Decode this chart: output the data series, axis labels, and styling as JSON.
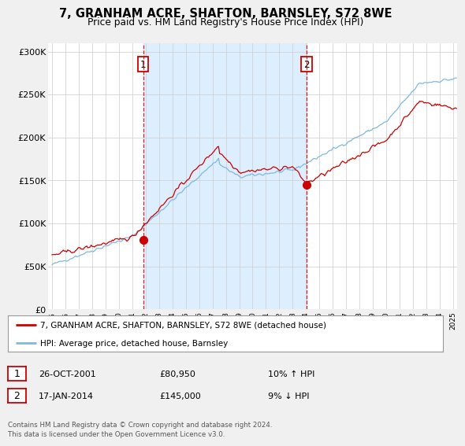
{
  "title": "7, GRANHAM ACRE, SHAFTON, BARNSLEY, S72 8WE",
  "subtitle": "Price paid vs. HM Land Registry's House Price Index (HPI)",
  "ylim": [
    0,
    310000
  ],
  "yticks": [
    0,
    50000,
    100000,
    150000,
    200000,
    250000,
    300000
  ],
  "ytick_labels": [
    "£0",
    "£50K",
    "£100K",
    "£150K",
    "£200K",
    "£250K",
    "£300K"
  ],
  "legend_entry1": "7, GRANHAM ACRE, SHAFTON, BARNSLEY, S72 8WE (detached house)",
  "legend_entry2": "HPI: Average price, detached house, Barnsley",
  "purchase1_date": "26-OCT-2001",
  "purchase1_price": 80950,
  "purchase1_x": 2001.81,
  "purchase1_hpi": "10% ↑ HPI",
  "purchase2_date": "17-JAN-2014",
  "purchase2_price": 145000,
  "purchase2_x": 2014.04,
  "purchase2_hpi": "9% ↓ HPI",
  "footer": "Contains HM Land Registry data © Crown copyright and database right 2024.\nThis data is licensed under the Open Government Licence v3.0.",
  "hpi_color": "#7fb9e0",
  "price_color": "#cc0000",
  "vline_color": "#cc0000",
  "shade_color": "#ddeeff",
  "bg_color": "#f0f0f0",
  "plot_bg": "#ffffff",
  "grid_color": "#cccccc",
  "xmin": 1995.0,
  "xmax": 2025.3
}
